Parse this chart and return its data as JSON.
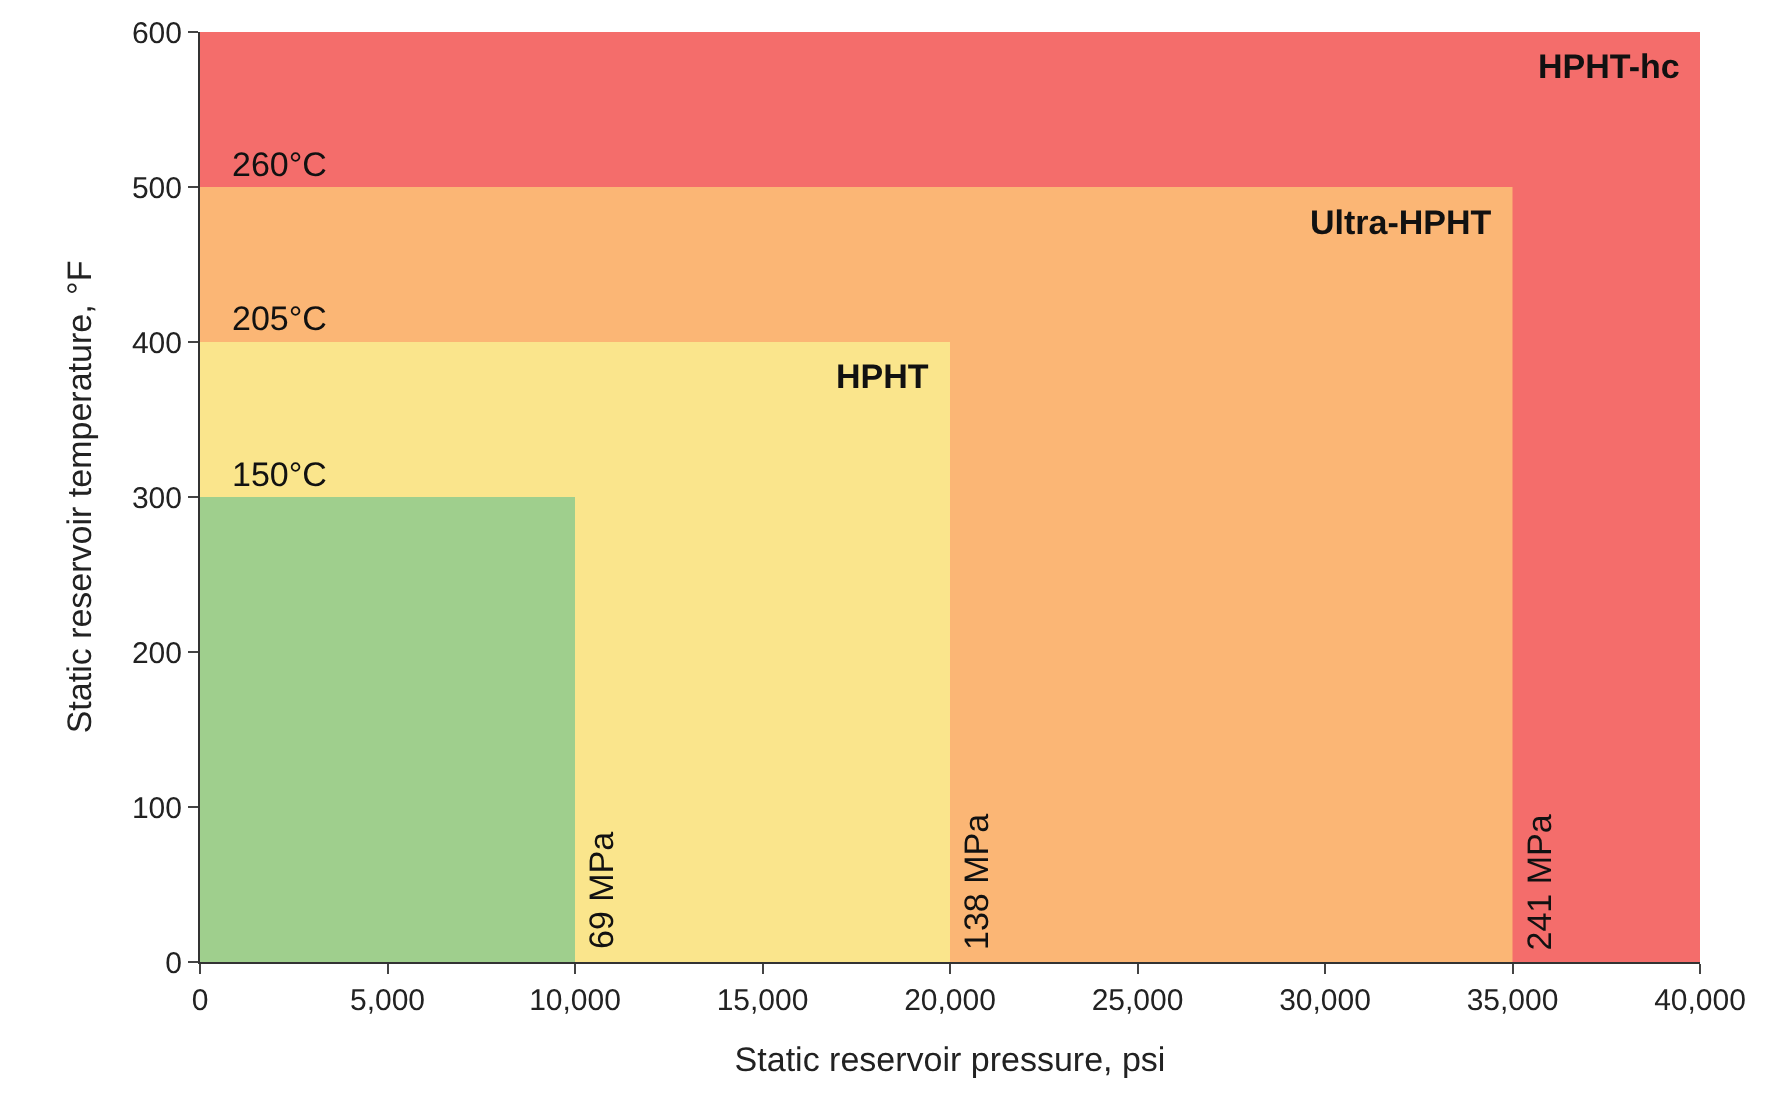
{
  "chart_data": {
    "type": "area",
    "xlabel": "Static reservoir pressure, psi",
    "ylabel": "Static reservoir temperature, °F",
    "series": [
      {
        "name": "HPHT-hc",
        "color": "#f46d6b",
        "x": [
          0,
          40000
        ],
        "values": [
          600,
          600
        ]
      },
      {
        "name": "Ultra-HPHT",
        "color": "#fbb675",
        "x": [
          0,
          35000
        ],
        "values": [
          500,
          500
        ]
      },
      {
        "name": "HPHT",
        "color": "#fae58c",
        "x": [
          0,
          20000
        ],
        "values": [
          400,
          400
        ]
      },
      {
        "color": "#9fcf8d",
        "x": [
          0,
          10000
        ],
        "values": [
          300,
          300
        ]
      }
    ],
    "annotations": [
      {
        "text": "260°C",
        "x": 0,
        "y": 500
      },
      {
        "text": "205°C",
        "x": 0,
        "y": 400
      },
      {
        "text": "150°C",
        "x": 0,
        "y": 300
      },
      {
        "text": "69 MPa",
        "x": 10000,
        "y": 0
      },
      {
        "text": "138 MPa",
        "x": 20000,
        "y": 0
      },
      {
        "text": "241 MPa",
        "x": 35000,
        "y": 0
      }
    ],
    "xlim": [
      0,
      40000
    ],
    "ylim": [
      0,
      600
    ],
    "xticks": [
      0,
      {
        "value": 5000,
        "label": "5,000"
      },
      {
        "value": 10000,
        "label": "10,000"
      },
      {
        "value": 15000,
        "label": "15,000"
      },
      {
        "value": 20000,
        "label": "20,000"
      },
      {
        "value": 25000,
        "label": "25,000"
      },
      {
        "value": 30000,
        "label": "30,000"
      },
      {
        "value": 35000,
        "label": "35,000"
      },
      {
        "value": 40000,
        "label": "40,000"
      }
    ],
    "yticks": [
      0,
      100,
      200,
      300,
      400,
      500,
      600
    ]
  }
}
